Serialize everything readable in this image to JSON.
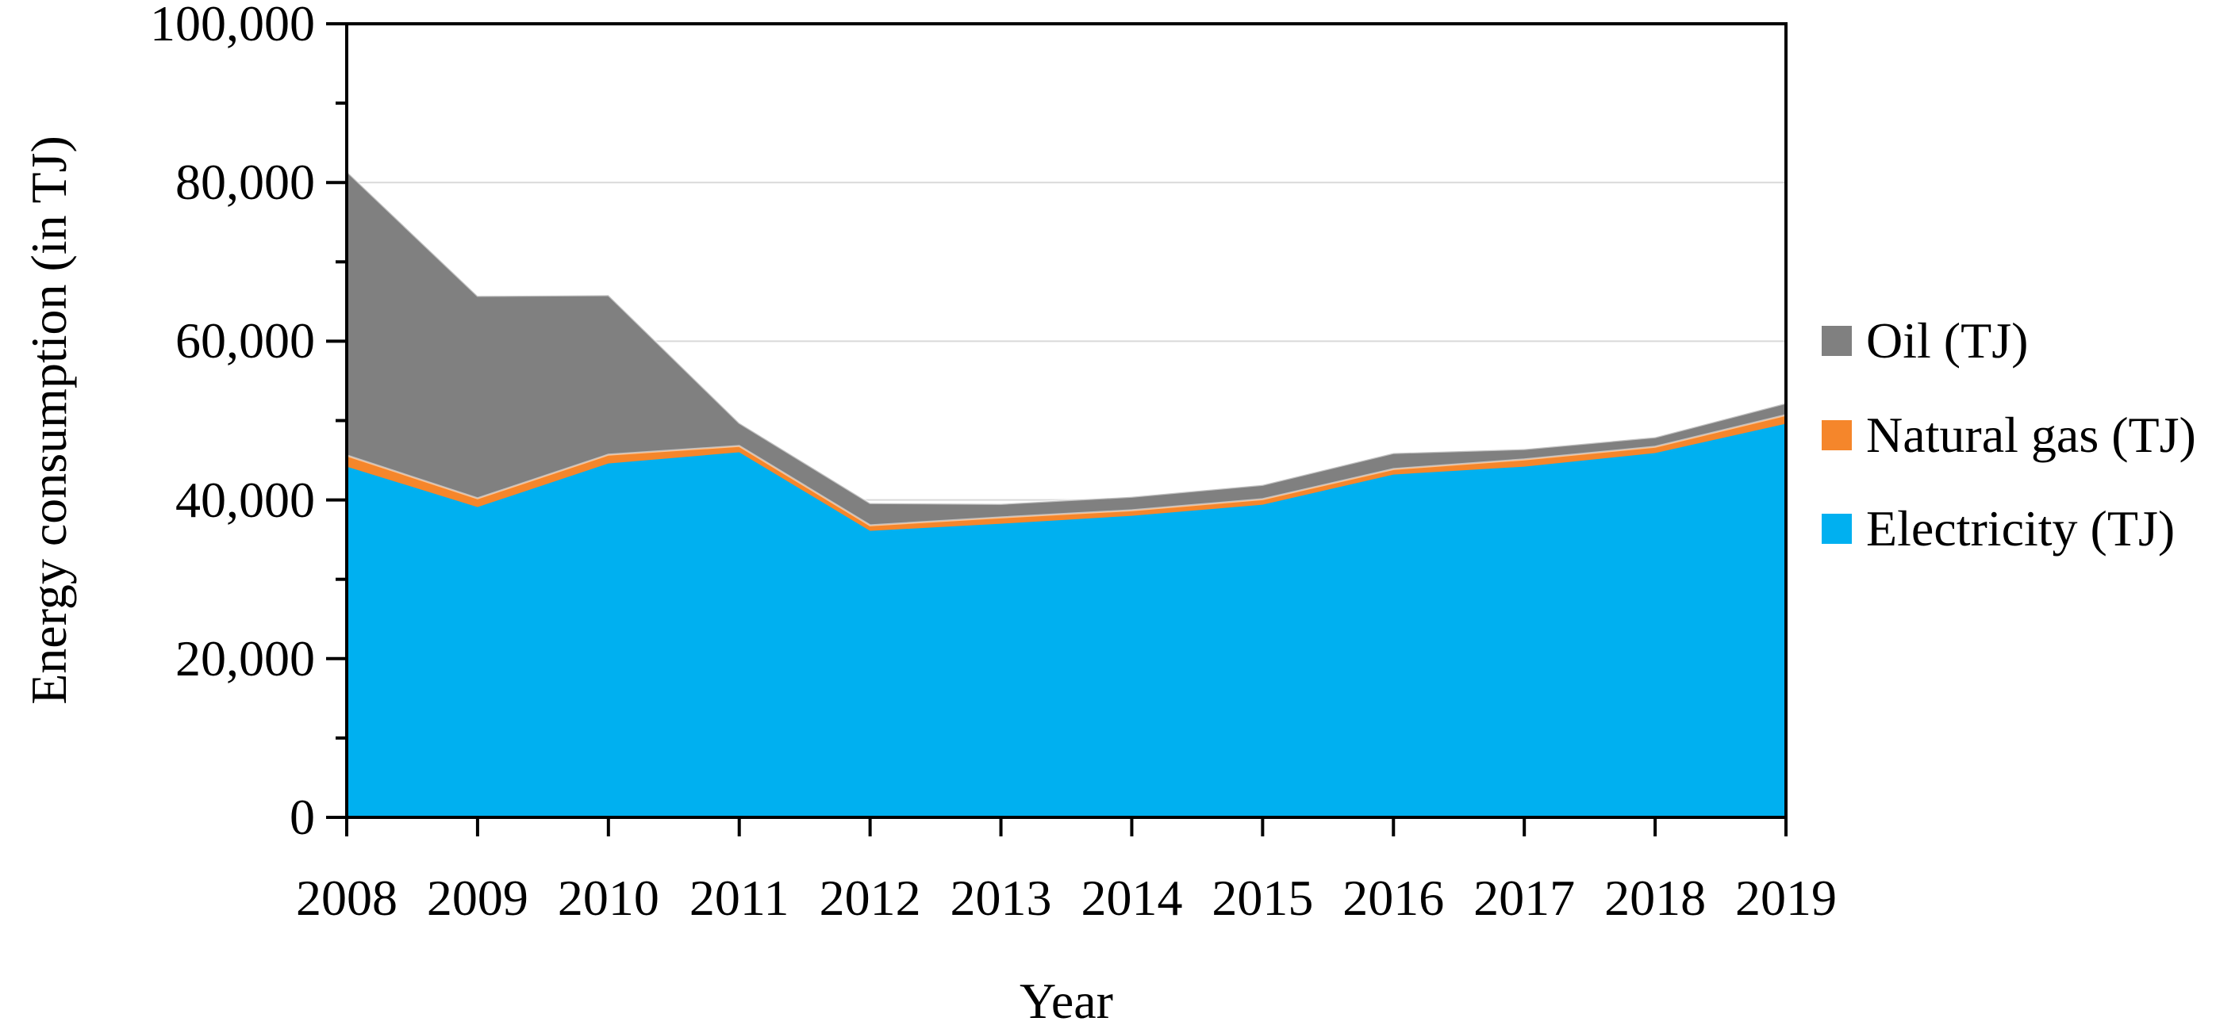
{
  "page": {
    "background": "#FFFFFF"
  },
  "chart_data": {
    "type": "area",
    "stacked": true,
    "title": "",
    "xlabel": "Year",
    "ylabel": "Energy consumption (in TJ)",
    "categories": [
      "2008",
      "2009",
      "2010",
      "2011",
      "2012",
      "2013",
      "2014",
      "2015",
      "2016",
      "2017",
      "2018",
      "2019"
    ],
    "series": [
      {
        "name": "Electricity (TJ)",
        "color": "#00B0F0",
        "values": [
          44200,
          39100,
          44600,
          46000,
          36100,
          37000,
          38000,
          39400,
          43200,
          44200,
          45900,
          49600
        ]
      },
      {
        "name": "Natural gas (TJ)",
        "color": "#F5862B",
        "values": [
          1400,
          1100,
          1100,
          800,
          700,
          800,
          700,
          700,
          700,
          900,
          800,
          1100
        ]
      },
      {
        "name": "Oil (TJ)",
        "color": "#808080",
        "values": [
          35800,
          25500,
          20100,
          2900,
          2800,
          1700,
          1700,
          1800,
          2000,
          1300,
          1200,
          1500
        ]
      }
    ],
    "ylim": [
      0,
      100000
    ],
    "ytick_major": 20000,
    "ytick_minor": 10000,
    "ytick_labels": [
      "0",
      "20,000",
      "40,000",
      "60,000",
      "80,000",
      "100,000"
    ],
    "grid": "horizontal-major",
    "gridline_color": "#D9D9D9",
    "axis_color": "#000000",
    "area_edge_highlight": "rgba(255,255,255,0.5)",
    "legend": {
      "position": "right",
      "items": [
        {
          "label": "Oil (TJ)",
          "color": "#808080"
        },
        {
          "label": "Natural gas (TJ)",
          "color": "#F5862B"
        },
        {
          "label": "Electricity (TJ)",
          "color": "#00B0F0"
        }
      ]
    }
  }
}
